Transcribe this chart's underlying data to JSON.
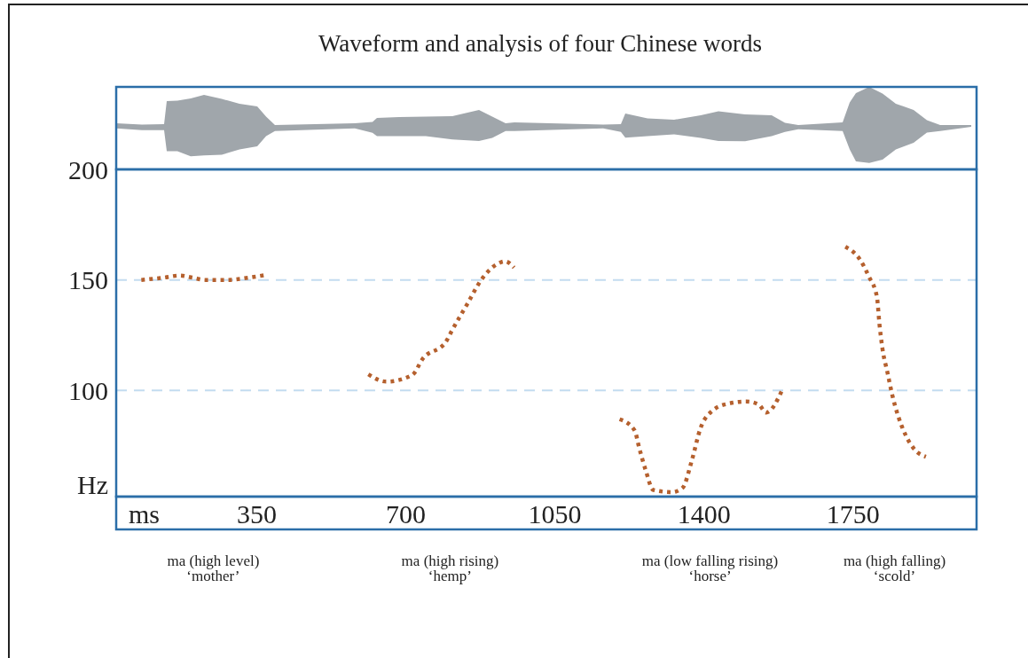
{
  "chart_data": {
    "type": "line",
    "title": "Waveform and analysis of four Chinese words",
    "xlabel": "ms",
    "ylabel": "Hz",
    "xlim": [
      20,
      2040
    ],
    "xticks": [
      350,
      700,
      1050,
      1400,
      1750
    ],
    "ylim": [
      52,
      200
    ],
    "yticks": [
      100,
      150,
      200
    ],
    "grid": "y",
    "line_style": "dotted",
    "marker": "none",
    "series": [
      {
        "color": "#b5602e",
        "x": [
          79,
          130,
          170,
          200,
          230,
          280,
          330,
          375
        ],
        "values": [
          150,
          151,
          152,
          151,
          150,
          150,
          151,
          152.4
        ]
      },
      {
        "color": "#b5602e",
        "x": [
          612,
          654,
          715,
          740,
          794,
          808,
          844,
          877,
          913,
          933,
          954
        ],
        "values": [
          107.3,
          104,
          107,
          114.4,
          122,
          127,
          139,
          150,
          157,
          158.4,
          155.6
        ]
      },
      {
        "color": "#b5602e",
        "x": [
          1202,
          1237,
          1248,
          1263,
          1281,
          1325,
          1350,
          1371,
          1392,
          1421,
          1456,
          1500,
          1529,
          1546,
          1585
        ],
        "values": [
          87,
          82,
          74,
          64,
          55,
          54,
          56,
          68,
          83,
          91,
          94,
          95,
          93.6,
          90,
          100.8
        ]
      },
      {
        "color": "#b5602e",
        "x": [
          1732,
          1767,
          1787,
          1806,
          1812,
          1819,
          1831,
          1842,
          1856,
          1873,
          1896,
          1921
        ],
        "values": [
          165,
          159,
          151.6,
          142.4,
          130,
          119,
          108,
          98,
          88.4,
          80,
          73,
          70
        ]
      }
    ],
    "annotations": [
      "ma (high level)\n‘mother’",
      "ma (high rising)\n‘hemp’",
      "ma (low falling rising)\n‘horse’",
      "ma (high falling)\n‘scold’"
    ]
  }
}
